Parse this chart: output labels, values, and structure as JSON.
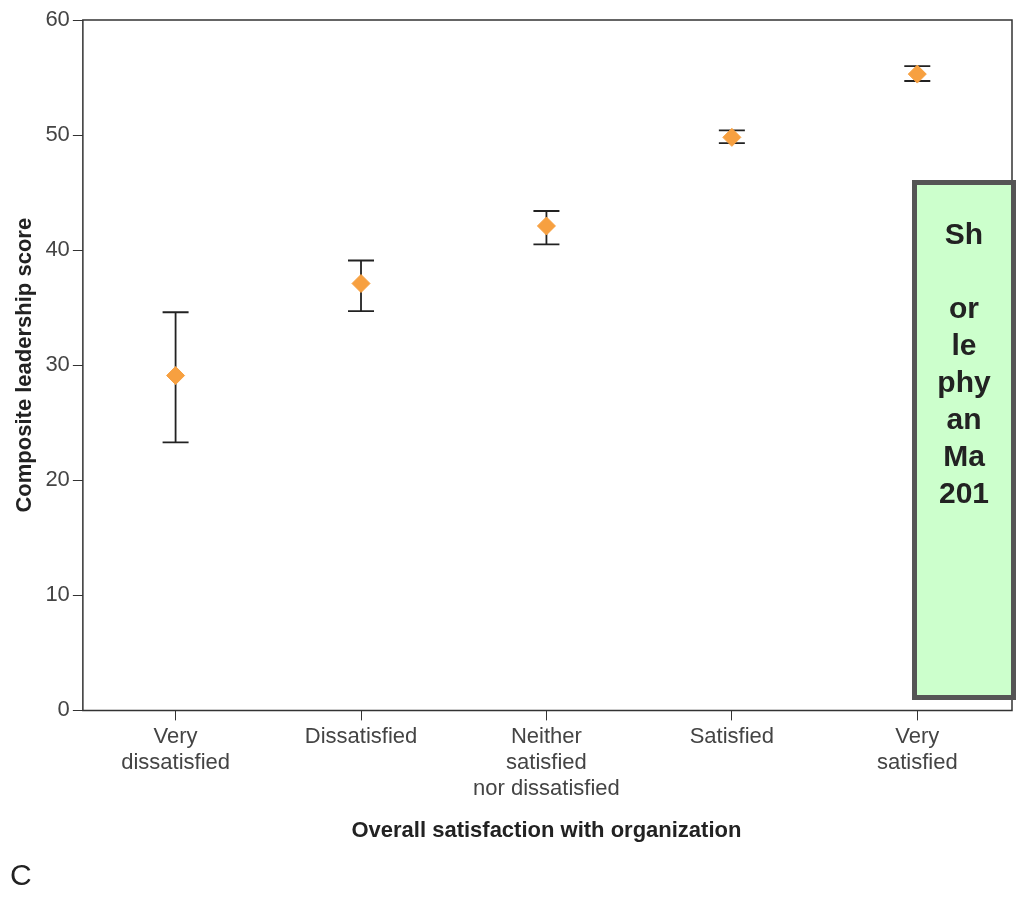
{
  "chart_data": {
    "type": "scatter",
    "xlabel": "Overall satisfaction with organization",
    "ylabel": "Composite leadership score",
    "categories": [
      "Very\ndissatisfied",
      "Dissatisfied",
      "Neither\nsatisfied\nnor dissatisfied",
      "Satisfied",
      "Very\nsatisfied"
    ],
    "series": [
      {
        "color": "#f7a040",
        "values": [
          29.1,
          37.1,
          42.1,
          49.8,
          55.3
        ],
        "errors": [
          [
            23.3,
            34.6
          ],
          [
            34.7,
            39.1
          ],
          [
            40.5,
            43.4
          ],
          [
            49.3,
            50.4
          ],
          [
            54.7,
            56.0
          ]
        ]
      }
    ],
    "ylim": [
      0,
      60
    ],
    "yticks": [
      0,
      10,
      20,
      30,
      40,
      50,
      60
    ],
    "grid": false,
    "legend": false,
    "marker": "diamond",
    "annotations": [
      "C",
      "Sh\n\nor\nle\nphy\nan\nMa\n201"
    ]
  }
}
